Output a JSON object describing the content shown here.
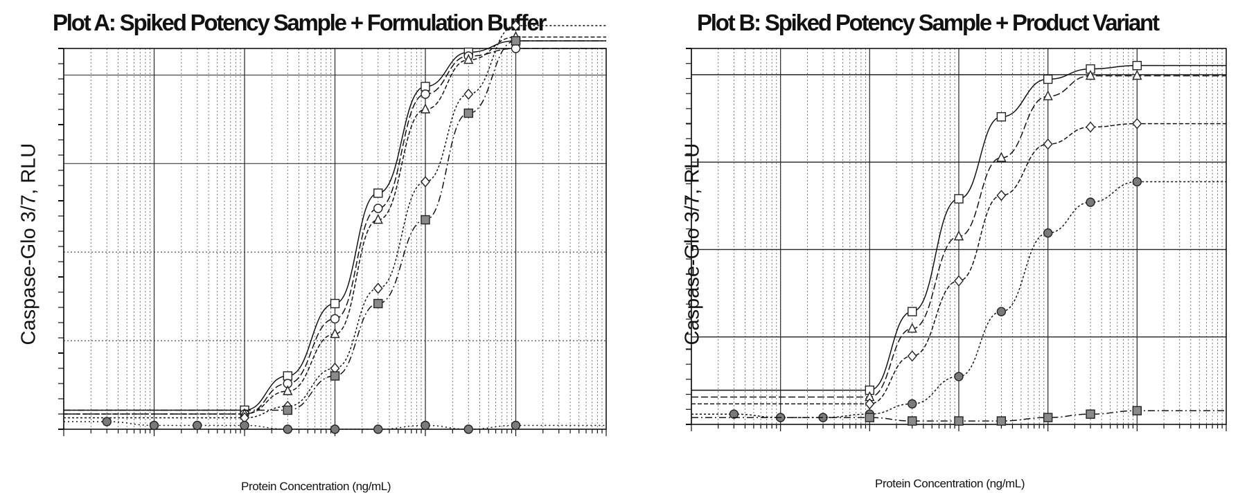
{
  "chart_data": [
    {
      "type": "line",
      "title": "Plot A:  Spiked Potency Sample + Formulation Buffer",
      "xlabel": "Protein Concentration (ng/mL)",
      "ylabel": "Caspase-Glo 3/7, RLU",
      "xscale": "log",
      "xlim": [
        0.001,
        1000
      ],
      "ylim": [
        0,
        1
      ],
      "grid": true,
      "legend": "none",
      "series": [
        {
          "marker": "square",
          "x": [
            0.1,
            0.3,
            1,
            3,
            10,
            30,
            100
          ],
          "y": [
            0.05,
            0.14,
            0.33,
            0.62,
            0.9,
            0.99,
            1.02
          ]
        },
        {
          "marker": "circle",
          "x": [
            0.1,
            0.3,
            1,
            3,
            10,
            30,
            100
          ],
          "y": [
            0.04,
            0.12,
            0.29,
            0.58,
            0.88,
            0.98,
            1.0
          ]
        },
        {
          "marker": "triangle",
          "x": [
            0.1,
            0.3,
            1,
            3,
            10,
            30,
            100
          ],
          "y": [
            0.04,
            0.1,
            0.25,
            0.55,
            0.84,
            0.97,
            1.03
          ]
        },
        {
          "marker": "diamond",
          "x": [
            0.1,
            0.3,
            1,
            3,
            10,
            30,
            100
          ],
          "y": [
            0.03,
            0.06,
            0.16,
            0.37,
            0.65,
            0.88,
            1.06
          ]
        },
        {
          "marker": "square-filled",
          "x": [
            0.3,
            1,
            3,
            10,
            30,
            100
          ],
          "y": [
            0.05,
            0.14,
            0.33,
            0.55,
            0.83,
            1.02
          ]
        },
        {
          "marker": "circle-filled",
          "x": [
            0.003,
            0.01,
            0.03,
            0.1,
            0.3,
            1,
            3,
            10,
            30,
            100
          ],
          "y": [
            0.02,
            0.01,
            0.01,
            0.01,
            0.0,
            0.0,
            0.0,
            0.01,
            0.0,
            0.01
          ]
        }
      ]
    },
    {
      "type": "line",
      "title": "Plot B: Spiked Potency Sample + Product Variant",
      "xlabel": "Protein Concentration (ng/mL)",
      "ylabel": "Caspase-Glo 3/7, RLU",
      "xscale": "log",
      "xlim": [
        0.001,
        1000
      ],
      "ylim": [
        0,
        1.1
      ],
      "grid": true,
      "legend": "none",
      "series": [
        {
          "marker": "square",
          "x": [
            0.1,
            0.3,
            1,
            3,
            10,
            30,
            100
          ],
          "y": [
            0.1,
            0.33,
            0.66,
            0.9,
            1.01,
            1.04,
            1.05
          ]
        },
        {
          "marker": "triangle",
          "x": [
            0.1,
            0.3,
            1,
            3,
            10,
            30,
            100
          ],
          "y": [
            0.08,
            0.28,
            0.55,
            0.78,
            0.96,
            1.02,
            1.02
          ]
        },
        {
          "marker": "diamond",
          "x": [
            0.1,
            0.3,
            1,
            3,
            10,
            30,
            100
          ],
          "y": [
            0.06,
            0.2,
            0.42,
            0.67,
            0.82,
            0.87,
            0.88
          ]
        },
        {
          "marker": "circle-filled",
          "x": [
            0.003,
            0.01,
            0.03,
            0.1,
            0.3,
            1,
            3,
            10,
            30,
            100
          ],
          "y": [
            0.03,
            0.02,
            0.02,
            0.03,
            0.06,
            0.14,
            0.33,
            0.56,
            0.65,
            0.71
          ]
        },
        {
          "marker": "square-filled",
          "x": [
            0.1,
            0.3,
            1,
            3,
            10,
            30,
            100
          ],
          "y": [
            0.02,
            0.01,
            0.01,
            0.01,
            0.02,
            0.03,
            0.04
          ]
        }
      ]
    }
  ]
}
